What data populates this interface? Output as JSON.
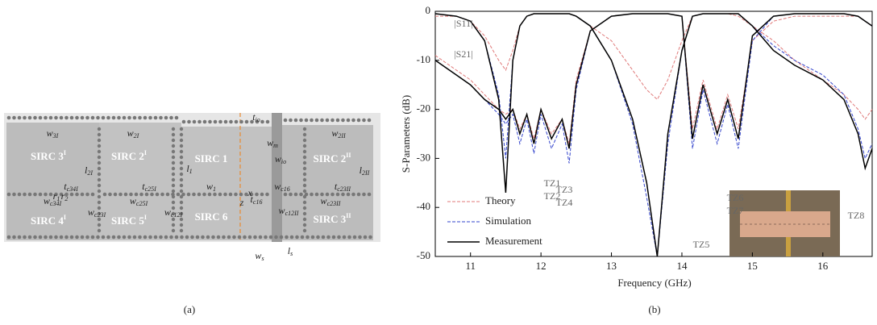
{
  "diagram": {
    "blocks": [
      {
        "text": "SIRC 3",
        "sup": "I"
      },
      {
        "text": "SIRC 2",
        "sup": "I"
      },
      {
        "text": "SIRC 1"
      },
      {
        "text": "SIRC 2",
        "sup": "II"
      },
      {
        "text": "SIRC 4",
        "sup": "I"
      },
      {
        "text": "SIRC 5",
        "sup": "I"
      },
      {
        "text": "SIRC 6"
      },
      {
        "text": "SIRC 3",
        "sup": "II"
      }
    ],
    "dims": [
      {
        "base": "w",
        "sub": "3I"
      },
      {
        "base": "w",
        "sub": "2I"
      },
      {
        "base": "l",
        "sub": "2I"
      },
      {
        "base": "l",
        "sub": "1"
      },
      {
        "base": "t",
        "sub": "io"
      },
      {
        "base": "w",
        "sub": "m"
      },
      {
        "base": "w",
        "sub": "io"
      },
      {
        "base": "w",
        "sub": "2II"
      },
      {
        "base": "l",
        "sub": "2II"
      },
      {
        "base": "t",
        "sub": "c34I"
      },
      {
        "base": "t",
        "sub": "c25I"
      },
      {
        "base": "w",
        "sub": "1"
      },
      {
        "base": "w",
        "sub": "c16"
      },
      {
        "base": "t",
        "sub": "c23II"
      },
      {
        "base": "w",
        "sub": "c34I"
      },
      {
        "base": "w",
        "sub": "c25I"
      },
      {
        "base": "w",
        "sub": "c23I"
      },
      {
        "base": "w",
        "sub": "c12I"
      },
      {
        "base": "t",
        "sub": "c16"
      },
      {
        "base": "w",
        "sub": "c12II"
      },
      {
        "base": "w",
        "sub": "c23II"
      },
      {
        "base": "r",
        "sub": "1"
      },
      {
        "base": "r",
        "sub": "2"
      },
      {
        "base": "x"
      },
      {
        "base": "z"
      },
      {
        "base": "w",
        "sub": "s"
      },
      {
        "base": "l",
        "sub": "s"
      }
    ]
  },
  "captions": [
    "(a)",
    "(b)"
  ],
  "chart_data": {
    "type": "line",
    "xlabel": "Frequency (GHz)",
    "ylabel": "S-Parameters (dB)",
    "xlim": [
      10.5,
      16.7
    ],
    "xticks": [
      11,
      12,
      13,
      14,
      15,
      16
    ],
    "ylim": [
      -50,
      0
    ],
    "yticks": [
      -50,
      -40,
      -30,
      -20,
      -10,
      0
    ],
    "x": [
      10.5,
      10.8,
      11.0,
      11.2,
      11.4,
      11.5,
      11.6,
      11.7,
      11.8,
      11.9,
      12.0,
      12.15,
      12.3,
      12.4,
      12.5,
      12.7,
      13.0,
      13.3,
      13.5,
      13.65,
      13.8,
      14.0,
      14.15,
      14.3,
      14.5,
      14.65,
      14.8,
      15.0,
      15.3,
      15.6,
      16.0,
      16.3,
      16.5,
      16.6,
      16.7
    ],
    "series": [
      {
        "name": "Theory",
        "color": "#e07a7a",
        "dashed": true,
        "values": [
          -9,
          -12,
          -14,
          -17,
          -20,
          -21,
          -20,
          -24,
          -21,
          -26,
          -20,
          -25,
          -22,
          -27,
          -14,
          -4,
          -1,
          -0.5,
          -0.5,
          -0.5,
          -0.5,
          -1,
          -24,
          -14,
          -24,
          -17,
          -24,
          -6,
          -2,
          -1,
          -1,
          -1,
          -1,
          -2,
          -3
        ]
      },
      {
        "color": "#e07a7a",
        "dashed": true,
        "values": [
          -1,
          -1,
          -2,
          -5,
          -10,
          -12,
          -8,
          -3,
          -1,
          -0.5,
          -0.5,
          -0.5,
          -0.5,
          -0.5,
          -1,
          -3,
          -6,
          -12,
          -16,
          -18,
          -14,
          -6,
          -1,
          -0.5,
          -0.5,
          -0.5,
          -1,
          -3,
          -6,
          -10,
          -14,
          -17,
          -20,
          -22,
          -20
        ]
      },
      {
        "name": "Simulation",
        "color": "#3344cc",
        "dashed": true,
        "values": [
          -10,
          -13,
          -15,
          -18,
          -21,
          -23,
          -21,
          -27,
          -22,
          -29,
          -21,
          -28,
          -23,
          -31,
          -16,
          -4,
          -1,
          -0.5,
          -0.5,
          -0.5,
          -0.5,
          -1,
          -28,
          -16,
          -27,
          -19,
          -28,
          -6,
          -1,
          -0.5,
          -0.5,
          -0.5,
          -1,
          -2,
          -3
        ]
      },
      {
        "color": "#3344cc",
        "dashed": true,
        "values": [
          -0.5,
          -1,
          -2,
          -6,
          -17,
          -30,
          -10,
          -3,
          -1,
          -0.5,
          -0.5,
          -0.5,
          -0.5,
          -0.5,
          -1,
          -3,
          -10,
          -23,
          -38,
          -50,
          -27,
          -8,
          -1,
          -0.5,
          -0.5,
          -0.5,
          -0.5,
          -3,
          -7,
          -10,
          -13,
          -17,
          -24,
          -30,
          -27
        ]
      },
      {
        "name": "Measurement",
        "color": "#000000",
        "dashed": false,
        "values": [
          -10,
          -13,
          -15,
          -18,
          -20,
          -22,
          -20,
          -25,
          -21,
          -27,
          -20,
          -26,
          -22,
          -28,
          -15,
          -4,
          -1,
          -0.5,
          -0.5,
          -0.5,
          -0.5,
          -1,
          -26,
          -15,
          -25,
          -18,
          -26,
          -5,
          -1,
          -0.5,
          -0.5,
          -0.5,
          -1,
          -2,
          -3
        ]
      },
      {
        "color": "#000000",
        "dashed": false,
        "values": [
          -0.5,
          -1,
          -2,
          -6,
          -18,
          -37,
          -10,
          -3,
          -1,
          -0.5,
          -0.5,
          -0.5,
          -0.5,
          -0.5,
          -1,
          -3,
          -10,
          -22,
          -35,
          -50,
          -25,
          -8,
          -1,
          -0.5,
          -0.5,
          -0.5,
          -0.5,
          -3,
          -8,
          -11,
          -14,
          -18,
          -25,
          -32,
          -28
        ]
      }
    ],
    "annotations": [
      "|S11|",
      "|S21|",
      "TZ1",
      "TZ2",
      "TZ3",
      "TZ4",
      "TZ5",
      "TZ6",
      "TZ7",
      "TZ8"
    ]
  }
}
